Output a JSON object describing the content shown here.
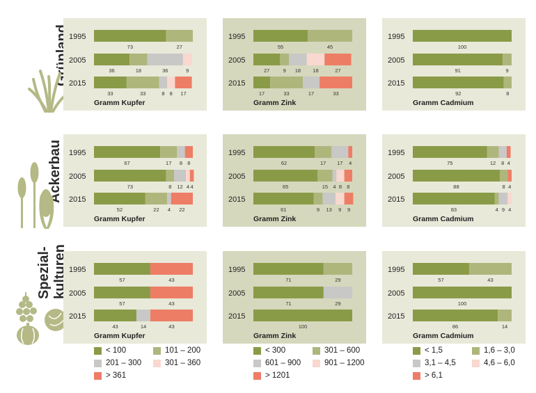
{
  "colors": {
    "panel_light": "#e8e9d9",
    "panel_dark": "#d6d8bd",
    "dark_green": "#8a9b47",
    "light_green": "#afb67c",
    "gray": "#c8c8c6",
    "pink": "#f8d8cf",
    "red": "#ee7d66",
    "plant": "#b4b986"
  },
  "row_labels": [
    "Grünland",
    "Ackerbau",
    "Spezial-\nkulturen"
  ],
  "legends": [
    {
      "items": [
        {
          "label": "< 100",
          "color": "#8a9b47"
        },
        {
          "label": "101 – 200",
          "color": "#afb67c"
        },
        {
          "label": "201 – 300",
          "color": "#c8c8c6"
        },
        {
          "label": "301 – 360",
          "color": "#f8d8cf"
        },
        {
          "label": "> 361",
          "color": "#ee7d66"
        }
      ]
    },
    {
      "items": [
        {
          "label": "< 300",
          "color": "#8a9b47"
        },
        {
          "label": "301 – 600",
          "color": "#afb67c"
        },
        {
          "label": "601 – 900",
          "color": "#c8c8c6"
        },
        {
          "label": "901 – 1200",
          "color": "#f8d8cf"
        },
        {
          "label": "> 1201",
          "color": "#ee7d66"
        }
      ]
    },
    {
      "items": [
        {
          "label": "< 1,5",
          "color": "#8a9b47"
        },
        {
          "label": "1,6 – 3,0",
          "color": "#afb67c"
        },
        {
          "label": "3,1 – 4,5",
          "color": "#c8c8c6"
        },
        {
          "label": "4,6 – 6,0",
          "color": "#f8d8cf"
        },
        {
          "label": "> 6,1",
          "color": "#ee7d66"
        }
      ]
    }
  ],
  "chart_data": [
    {
      "type": "bar",
      "stacked": true,
      "orientation": "horizontal",
      "row": "Grünland",
      "title": "Gramm Kupfer",
      "categories": [
        "1995",
        "2005",
        "2015"
      ],
      "values": [
        [
          73,
          27,
          0,
          0,
          0
        ],
        [
          36,
          18,
          36,
          9,
          0
        ],
        [
          33,
          33,
          8,
          8,
          17
        ]
      ]
    },
    {
      "type": "bar",
      "stacked": true,
      "orientation": "horizontal",
      "row": "Grünland",
      "title": "Gramm Zink",
      "categories": [
        "1995",
        "2005",
        "2015"
      ],
      "values": [
        [
          55,
          45,
          0,
          0,
          0
        ],
        [
          27,
          9,
          18,
          18,
          27
        ],
        [
          17,
          33,
          17,
          0,
          33
        ]
      ]
    },
    {
      "type": "bar",
      "stacked": true,
      "orientation": "horizontal",
      "row": "Grünland",
      "title": "Gramm Cadmium",
      "categories": [
        "1995",
        "2005",
        "2015"
      ],
      "values": [
        [
          100,
          0,
          0,
          0,
          0
        ],
        [
          91,
          9,
          0,
          0,
          0
        ],
        [
          92,
          8,
          0,
          0,
          0
        ]
      ]
    },
    {
      "type": "bar",
      "stacked": true,
      "orientation": "horizontal",
      "row": "Ackerbau",
      "title": "Gramm Kupfer",
      "categories": [
        "1995",
        "2005",
        "2015"
      ],
      "values": [
        [
          67,
          17,
          8,
          0,
          8
        ],
        [
          73,
          8,
          12,
          4,
          4
        ],
        [
          52,
          22,
          4,
          0,
          22
        ]
      ]
    },
    {
      "type": "bar",
      "stacked": true,
      "orientation": "horizontal",
      "row": "Ackerbau",
      "title": "Gramm Zink",
      "categories": [
        "1995",
        "2005",
        "2015"
      ],
      "values": [
        [
          62,
          17,
          17,
          0,
          4
        ],
        [
          65,
          15,
          4,
          8,
          8
        ],
        [
          61,
          9,
          13,
          9,
          9
        ]
      ]
    },
    {
      "type": "bar",
      "stacked": true,
      "orientation": "horizontal",
      "row": "Ackerbau",
      "title": "Gramm Cadmium",
      "categories": [
        "1995",
        "2005",
        "2015"
      ],
      "values": [
        [
          75,
          12,
          8,
          0,
          4
        ],
        [
          88,
          8,
          0,
          0,
          4
        ],
        [
          83,
          4,
          9,
          4,
          0
        ]
      ]
    },
    {
      "type": "bar",
      "stacked": true,
      "orientation": "horizontal",
      "row": "Spezialkulturen",
      "title": "Gramm Kupfer",
      "categories": [
        "1995",
        "2005",
        "2015"
      ],
      "values": [
        [
          57,
          0,
          0,
          0,
          43
        ],
        [
          57,
          0,
          0,
          0,
          43
        ],
        [
          43,
          0,
          14,
          0,
          43
        ]
      ]
    },
    {
      "type": "bar",
      "stacked": true,
      "orientation": "horizontal",
      "row": "Spezialkulturen",
      "title": "Gramm Zink",
      "categories": [
        "1995",
        "2005",
        "2015"
      ],
      "values": [
        [
          71,
          29,
          0,
          0,
          0
        ],
        [
          71,
          0,
          29,
          0,
          0
        ],
        [
          100,
          0,
          0,
          0,
          0
        ]
      ]
    },
    {
      "type": "bar",
      "stacked": true,
      "orientation": "horizontal",
      "row": "Spezialkulturen",
      "title": "Gramm Cadmium",
      "categories": [
        "1995",
        "2005",
        "2015"
      ],
      "values": [
        [
          57,
          43,
          0,
          0,
          0
        ],
        [
          100,
          0,
          0,
          0,
          0
        ],
        [
          86,
          14,
          0,
          0,
          0
        ]
      ]
    }
  ]
}
